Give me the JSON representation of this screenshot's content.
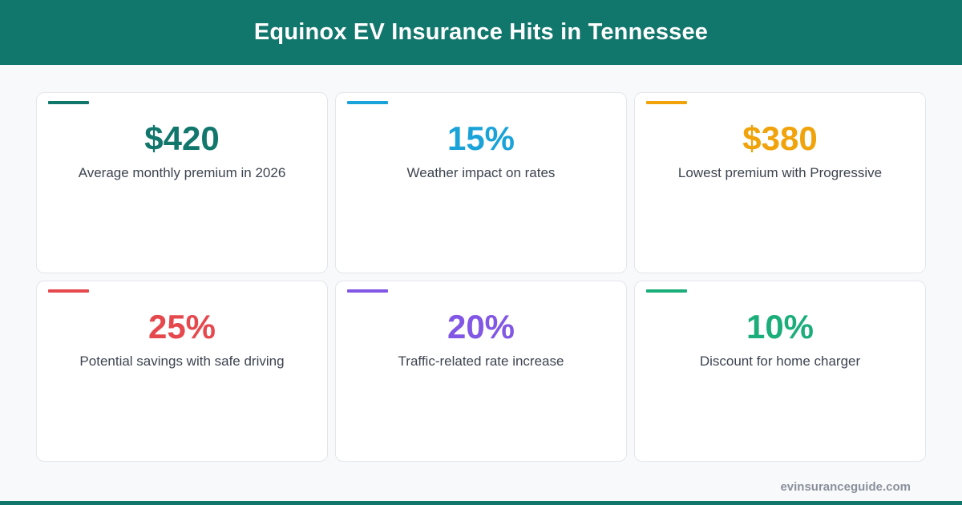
{
  "header": {
    "title": "Equinox EV Insurance Hits in Tennessee"
  },
  "cards": [
    {
      "value": "$420",
      "label": "Average monthly premium in 2026",
      "color": "#11766c"
    },
    {
      "value": "15%",
      "label": "Weather impact on rates",
      "color": "#1aa3d9"
    },
    {
      "value": "$380",
      "label": "Lowest premium with Progressive",
      "color": "#f0a30a"
    },
    {
      "value": "25%",
      "label": "Potential savings with safe driving",
      "color": "#e5484d"
    },
    {
      "value": "20%",
      "label": "Traffic-related rate increase",
      "color": "#8257e5"
    },
    {
      "value": "10%",
      "label": "Discount for home charger",
      "color": "#1cae7a"
    }
  ],
  "footer": {
    "site": "evinsuranceguide.com"
  }
}
